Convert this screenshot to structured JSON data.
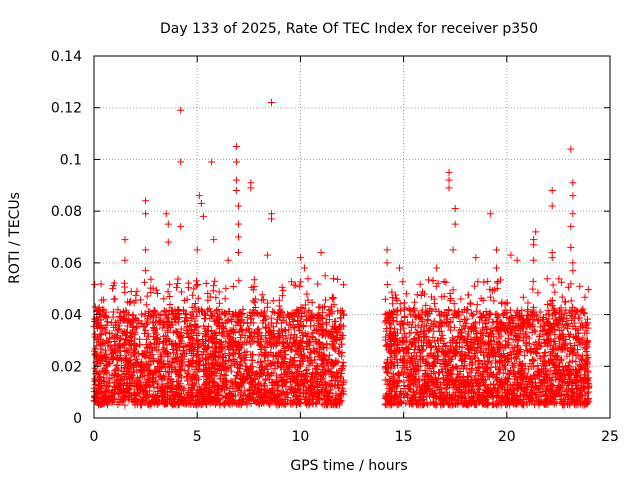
{
  "chart_data": {
    "type": "scatter",
    "title": "Day 133 of 2025, Rate Of TEC Index for receiver p350",
    "xlabel": "GPS time / hours",
    "ylabel": "ROTI / TECUs",
    "xlim": [
      0,
      25
    ],
    "ylim": [
      0,
      0.14
    ],
    "xticks": [
      0,
      5,
      10,
      15,
      20,
      25
    ],
    "yticks": [
      0,
      0.02,
      0.04,
      0.06,
      0.08,
      0.1,
      0.12,
      0.14
    ],
    "grid": true,
    "marker": "+",
    "series_color": "#ff0000",
    "coverage_hours": [
      [
        0,
        12.1
      ],
      [
        14.1,
        24.0
      ]
    ],
    "baseline_range": [
      0.005,
      0.03
    ],
    "notable_points": [
      {
        "x": 0.3,
        "y": 0.035
      },
      {
        "x": 1.5,
        "y": 0.069
      },
      {
        "x": 1.5,
        "y": 0.061
      },
      {
        "x": 2.5,
        "y": 0.084
      },
      {
        "x": 2.5,
        "y": 0.079
      },
      {
        "x": 2.5,
        "y": 0.065
      },
      {
        "x": 2.5,
        "y": 0.057
      },
      {
        "x": 3.5,
        "y": 0.079
      },
      {
        "x": 3.6,
        "y": 0.075
      },
      {
        "x": 3.6,
        "y": 0.068
      },
      {
        "x": 4.2,
        "y": 0.119
      },
      {
        "x": 4.2,
        "y": 0.099
      },
      {
        "x": 4.2,
        "y": 0.074
      },
      {
        "x": 5.0,
        "y": 0.065
      },
      {
        "x": 5.1,
        "y": 0.086
      },
      {
        "x": 5.2,
        "y": 0.083
      },
      {
        "x": 5.3,
        "y": 0.078
      },
      {
        "x": 5.7,
        "y": 0.099
      },
      {
        "x": 5.8,
        "y": 0.069
      },
      {
        "x": 6.5,
        "y": 0.061
      },
      {
        "x": 6.9,
        "y": 0.105
      },
      {
        "x": 6.9,
        "y": 0.099
      },
      {
        "x": 6.9,
        "y": 0.092
      },
      {
        "x": 6.9,
        "y": 0.088
      },
      {
        "x": 7.0,
        "y": 0.082
      },
      {
        "x": 7.0,
        "y": 0.075
      },
      {
        "x": 7.0,
        "y": 0.07
      },
      {
        "x": 7.0,
        "y": 0.064
      },
      {
        "x": 7.6,
        "y": 0.091
      },
      {
        "x": 7.6,
        "y": 0.089
      },
      {
        "x": 8.4,
        "y": 0.063
      },
      {
        "x": 8.6,
        "y": 0.122
      },
      {
        "x": 8.6,
        "y": 0.079
      },
      {
        "x": 8.6,
        "y": 0.077
      },
      {
        "x": 10.0,
        "y": 0.062
      },
      {
        "x": 10.2,
        "y": 0.058
      },
      {
        "x": 11.0,
        "y": 0.064
      },
      {
        "x": 11.2,
        "y": 0.055
      },
      {
        "x": 14.2,
        "y": 0.065
      },
      {
        "x": 14.2,
        "y": 0.06
      },
      {
        "x": 14.8,
        "y": 0.058
      },
      {
        "x": 16.6,
        "y": 0.058
      },
      {
        "x": 17.2,
        "y": 0.095
      },
      {
        "x": 17.2,
        "y": 0.092
      },
      {
        "x": 17.2,
        "y": 0.089
      },
      {
        "x": 17.5,
        "y": 0.081
      },
      {
        "x": 17.5,
        "y": 0.075
      },
      {
        "x": 17.4,
        "y": 0.065
      },
      {
        "x": 18.5,
        "y": 0.062
      },
      {
        "x": 19.2,
        "y": 0.079
      },
      {
        "x": 19.5,
        "y": 0.065
      },
      {
        "x": 19.5,
        "y": 0.058
      },
      {
        "x": 20.2,
        "y": 0.063
      },
      {
        "x": 20.5,
        "y": 0.061
      },
      {
        "x": 21.4,
        "y": 0.072
      },
      {
        "x": 21.3,
        "y": 0.069
      },
      {
        "x": 21.3,
        "y": 0.067
      },
      {
        "x": 21.3,
        "y": 0.061
      },
      {
        "x": 22.2,
        "y": 0.088
      },
      {
        "x": 22.2,
        "y": 0.082
      },
      {
        "x": 22.2,
        "y": 0.064
      },
      {
        "x": 22.2,
        "y": 0.062
      },
      {
        "x": 23.1,
        "y": 0.104
      },
      {
        "x": 23.2,
        "y": 0.091
      },
      {
        "x": 23.2,
        "y": 0.086
      },
      {
        "x": 23.2,
        "y": 0.079
      },
      {
        "x": 23.1,
        "y": 0.074
      },
      {
        "x": 23.1,
        "y": 0.066
      },
      {
        "x": 23.2,
        "y": 0.06
      },
      {
        "x": 23.2,
        "y": 0.057
      }
    ]
  }
}
